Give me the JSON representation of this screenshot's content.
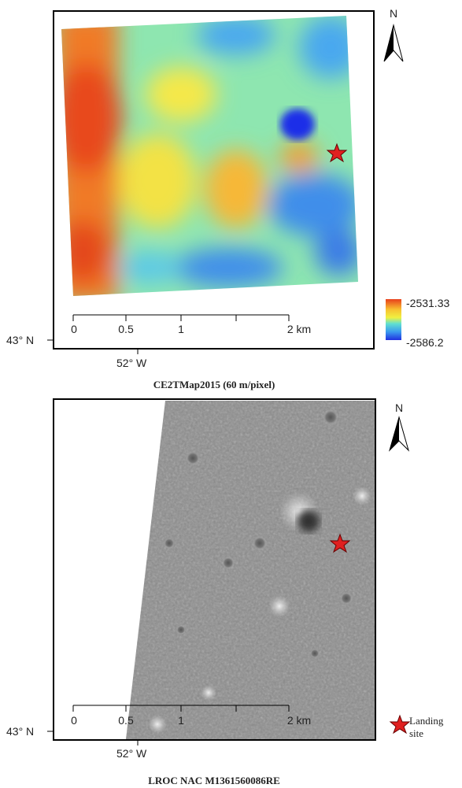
{
  "panels": [
    {
      "north": "N",
      "legend": {
        "max": "-2531.33",
        "min": "-2586.2"
      },
      "scale": [
        "0",
        "0.5",
        "1",
        "2 km"
      ],
      "latitude": "43° N",
      "longitude": "52° W",
      "caption": "CE2TMap2015 (60 m/pixel)"
    },
    {
      "north": "N",
      "legend": {
        "label": "Landing site"
      },
      "scale": [
        "0",
        "0.5",
        "1",
        "2 km"
      ],
      "latitude": "43° N",
      "longitude": "52° W",
      "caption": "LROC NAC M1361560086RE"
    }
  ]
}
